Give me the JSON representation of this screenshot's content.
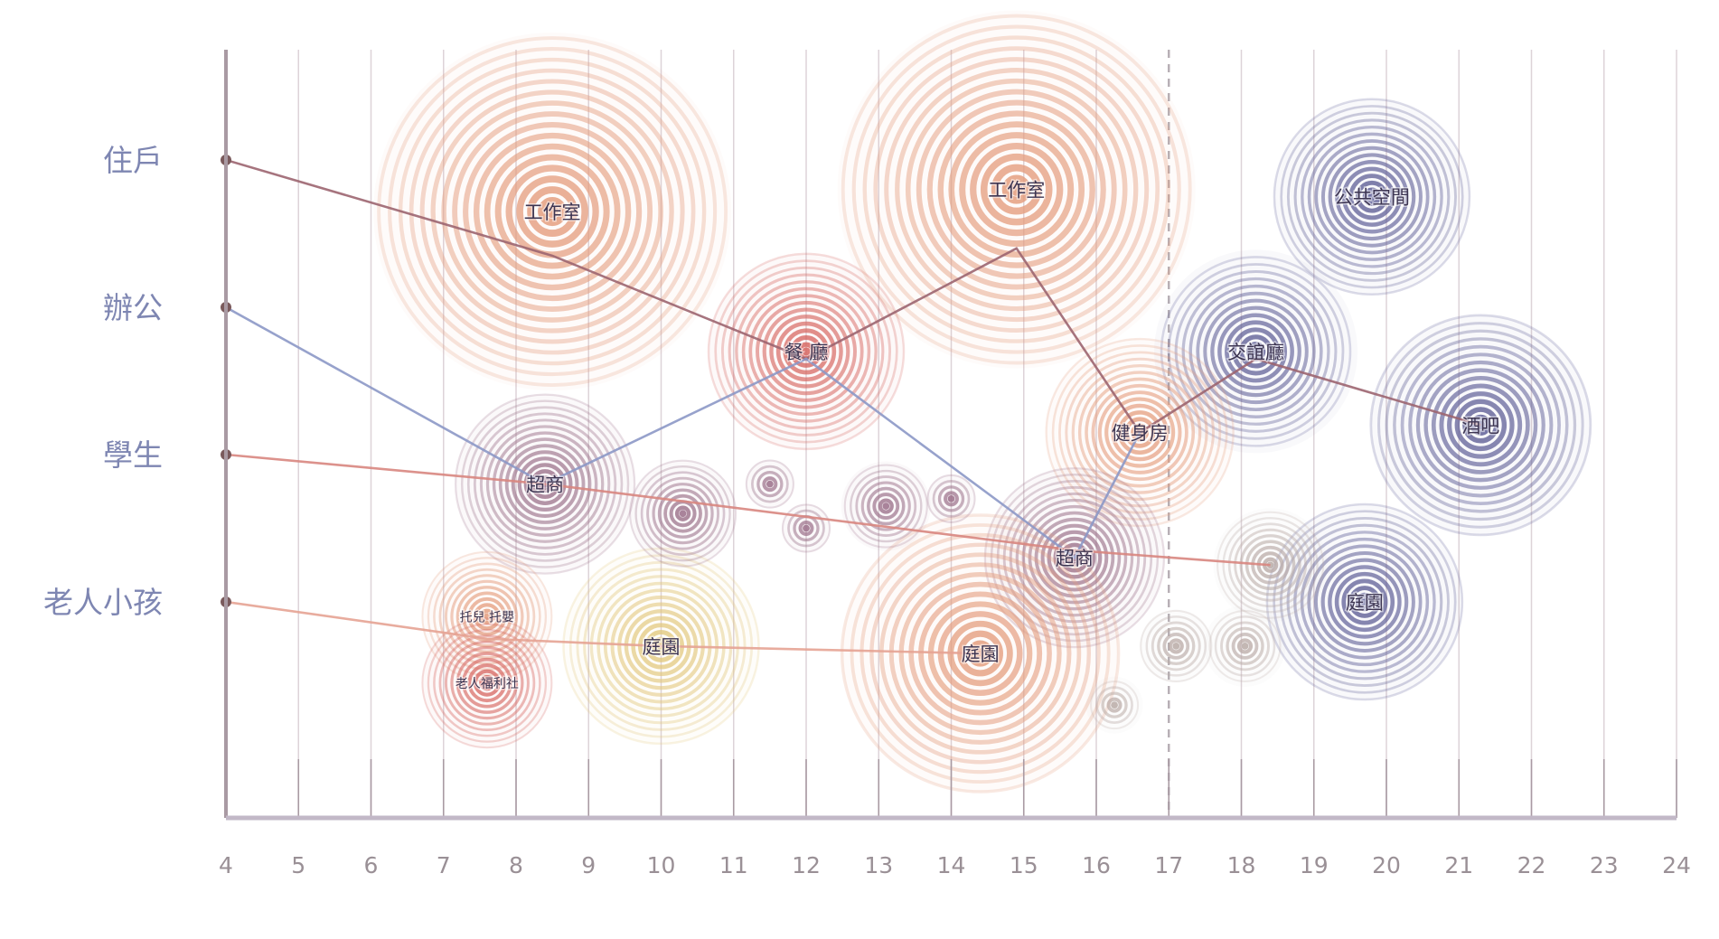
{
  "chart_data": {
    "type": "scatter",
    "title": "",
    "xlabel": "",
    "ylabel": "",
    "xlim": [
      4,
      24
    ],
    "x_ticks": [
      4,
      5,
      6,
      7,
      8,
      9,
      10,
      11,
      12,
      13,
      14,
      15,
      16,
      17,
      18,
      19,
      20,
      21,
      22,
      23,
      24
    ],
    "dashed_reference_x": 17,
    "grid": true,
    "legend": "none",
    "categories": [
      "住戶",
      "辦公",
      "學生",
      "老人小孩"
    ],
    "colors": {
      "warm": "#e49c7c",
      "hot": "#d6655f",
      "cool": "#5b5b94",
      "mauve": "#9a6f88",
      "yellow": "#e2c77c",
      "grey": "#b9aaa6",
      "residents_line": "#9c6570",
      "office_line": "#8c98c6",
      "students_line": "#d88680",
      "elderly_line": "#e6a394",
      "axis": "#a99aa3",
      "category_text": "#7e86b2",
      "tick_text": "#9a9096"
    },
    "spaces": [
      {
        "label": "工作室",
        "x": 8.5,
        "level": 1.35,
        "size": 2.2,
        "palette": "warm"
      },
      {
        "label": "餐 廳",
        "x": 12.0,
        "level": 2.3,
        "size": 1.2,
        "palette": "hot"
      },
      {
        "label": "工作室",
        "x": 14.9,
        "level": 1.2,
        "size": 2.2,
        "palette": "warm"
      },
      {
        "label": "公共空間",
        "x": 19.8,
        "level": 1.25,
        "size": 1.2,
        "palette": "cool"
      },
      {
        "label": "交誼廳",
        "x": 18.2,
        "level": 2.3,
        "size": 1.25,
        "palette": "cool"
      },
      {
        "label": "健身房",
        "x": 16.6,
        "level": 2.85,
        "size": 1.15,
        "palette": "warm"
      },
      {
        "label": "酒吧",
        "x": 21.3,
        "level": 2.8,
        "size": 1.35,
        "palette": "cool"
      },
      {
        "label": "超商",
        "x": 8.4,
        "level": 3.2,
        "size": 1.1,
        "palette": "mauve"
      },
      {
        "label": "超商",
        "x": 15.7,
        "level": 3.7,
        "size": 1.1,
        "palette": "mauve"
      },
      {
        "label": "托兒 托嬰",
        "x": 7.6,
        "level": 4.1,
        "size": 0.8,
        "palette": "warm"
      },
      {
        "label": "老人福利社",
        "x": 7.6,
        "level": 4.55,
        "size": 0.8,
        "palette": "hot"
      },
      {
        "label": "庭園",
        "x": 10.0,
        "level": 4.3,
        "size": 1.2,
        "palette": "yellow"
      },
      {
        "label": "庭園",
        "x": 14.4,
        "level": 4.35,
        "size": 1.7,
        "palette": "warm"
      },
      {
        "label": "庭園",
        "x": 19.7,
        "level": 4.0,
        "size": 1.2,
        "palette": "cool"
      },
      {
        "label": "",
        "x": 10.3,
        "level": 3.4,
        "size": 0.65,
        "palette": "mauve"
      },
      {
        "label": "",
        "x": 11.5,
        "level": 3.2,
        "size": 0.3,
        "palette": "mauve"
      },
      {
        "label": "",
        "x": 12.0,
        "level": 3.5,
        "size": 0.3,
        "palette": "mauve"
      },
      {
        "label": "",
        "x": 13.1,
        "level": 3.35,
        "size": 0.55,
        "palette": "mauve"
      },
      {
        "label": "",
        "x": 14.0,
        "level": 3.3,
        "size": 0.3,
        "palette": "mauve"
      },
      {
        "label": "",
        "x": 18.4,
        "level": 3.75,
        "size": 0.7,
        "palette": "grey"
      },
      {
        "label": "",
        "x": 17.1,
        "level": 4.3,
        "size": 0.45,
        "palette": "grey"
      },
      {
        "label": "",
        "x": 18.05,
        "level": 4.3,
        "size": 0.5,
        "palette": "grey"
      },
      {
        "label": "",
        "x": 16.25,
        "level": 4.7,
        "size": 0.35,
        "palette": "grey"
      }
    ],
    "series": [
      {
        "category": "住戶",
        "color_key": "residents_line",
        "points": [
          [
            4,
            1
          ],
          [
            8.5,
            1.65
          ],
          [
            12.0,
            2.35
          ],
          [
            14.9,
            1.6
          ],
          [
            16.6,
            2.85
          ],
          [
            18.2,
            2.35
          ],
          [
            21.3,
            2.8
          ]
        ]
      },
      {
        "category": "辦公",
        "color_key": "office_line",
        "points": [
          [
            4,
            2
          ],
          [
            8.4,
            3.2
          ],
          [
            12.0,
            2.35
          ],
          [
            15.7,
            3.7
          ],
          [
            16.6,
            2.85
          ]
        ]
      },
      {
        "category": "學生",
        "color_key": "students_line",
        "points": [
          [
            4,
            3
          ],
          [
            8.4,
            3.2
          ],
          [
            15.7,
            3.65
          ],
          [
            18.4,
            3.75
          ]
        ]
      },
      {
        "category": "老人小孩",
        "color_key": "elderly_line",
        "points": [
          [
            4,
            4
          ],
          [
            7.6,
            4.25
          ],
          [
            10.0,
            4.3
          ],
          [
            14.4,
            4.35
          ]
        ]
      }
    ]
  }
}
